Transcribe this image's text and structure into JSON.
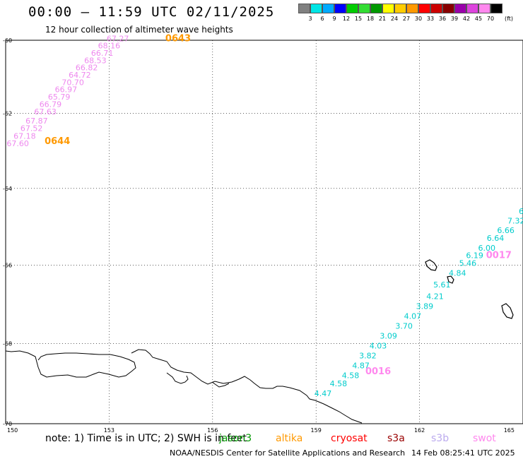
{
  "title": "00:00 – 11:59 UTC 02/11/2025",
  "subtitle": "12 hour collection of altimeter wave heights",
  "colorbar": {
    "colors": [
      "#808080",
      "#00e5e5",
      "#00aaff",
      "#0000ff",
      "#00cc00",
      "#33dd33",
      "#009900",
      "#ffff00",
      "#ffcc00",
      "#ff9900",
      "#ff0000",
      "#cc0000",
      "#880000",
      "#9900aa",
      "#dd44dd",
      "#ff88ee",
      "#000000"
    ],
    "labels": [
      "3",
      "6",
      "9",
      "12",
      "15",
      "18",
      "21",
      "24",
      "27",
      "30",
      "33",
      "36",
      "39",
      "42",
      "45",
      "70"
    ],
    "unit": "(ft)"
  },
  "map": {
    "lon_range": [
      150,
      165
    ],
    "lat_range": [
      -60,
      -70
    ],
    "lat_ticks": [
      {
        "lat": -60,
        "label": "-60"
      },
      {
        "lat": -62,
        "label": "-62"
      },
      {
        "lat": -64,
        "label": "-64"
      },
      {
        "lat": -66,
        "label": "-66"
      },
      {
        "lat": -68,
        "label": "-68"
      },
      {
        "lat": -70,
        "label": "-70"
      }
    ],
    "lon_ticks": [
      {
        "lon": 150,
        "label": "150"
      },
      {
        "lon": 153,
        "label": "153"
      },
      {
        "lon": 156,
        "label": "156"
      },
      {
        "lon": 159,
        "label": "159"
      },
      {
        "lon": 162,
        "label": "162"
      },
      {
        "lon": 165,
        "label": "165"
      }
    ],
    "passes": [
      {
        "satellite": "swot",
        "color": "#ee88ee",
        "labels": [
          {
            "text": "0643",
            "lon": 155.0,
            "lat": -59.95,
            "color": "#ff9900"
          },
          {
            "text": "0644",
            "lon": 151.5,
            "lat": -62.75,
            "color": "#ff9900"
          }
        ],
        "observations": [
          {
            "lon": 153.25,
            "lat": -59.95,
            "value": "67.27"
          },
          {
            "lon": 153.0,
            "lat": -60.15,
            "value": "68.16"
          },
          {
            "lon": 152.8,
            "lat": -60.35,
            "value": "66.71"
          },
          {
            "lon": 152.6,
            "lat": -60.55,
            "value": "68.53"
          },
          {
            "lon": 152.35,
            "lat": -60.75,
            "value": "66.82"
          },
          {
            "lon": 152.15,
            "lat": -60.95,
            "value": "64.72"
          },
          {
            "lon": 151.95,
            "lat": -61.15,
            "value": "70.70"
          },
          {
            "lon": 151.75,
            "lat": -61.35,
            "value": "66.97"
          },
          {
            "lon": 151.55,
            "lat": -61.55,
            "value": "65.79"
          },
          {
            "lon": 151.3,
            "lat": -61.75,
            "value": "66.79"
          },
          {
            "lon": 151.15,
            "lat": -61.95,
            "value": "67.63"
          },
          {
            "lon": 150.9,
            "lat": -62.2,
            "value": "67.87"
          },
          {
            "lon": 150.75,
            "lat": -62.4,
            "value": "67.52"
          },
          {
            "lon": 150.55,
            "lat": -62.6,
            "value": "67.18"
          },
          {
            "lon": 150.35,
            "lat": -62.8,
            "value": "67.60"
          }
        ]
      },
      {
        "satellite": "swot",
        "color": "#00cccc",
        "labels": [
          {
            "text": "0017",
            "lon": 164.3,
            "lat": -65.75,
            "color": "#ff88ee"
          },
          {
            "text": "0016",
            "lon": 160.8,
            "lat": -68.7,
            "color": "#ff88ee"
          }
        ],
        "observations": [
          {
            "lon": 164.95,
            "lat": -64.6,
            "value": "6"
          },
          {
            "lon": 164.8,
            "lat": -64.85,
            "value": "7.32"
          },
          {
            "lon": 164.5,
            "lat": -65.1,
            "value": "6.66"
          },
          {
            "lon": 164.2,
            "lat": -65.3,
            "value": "6.64"
          },
          {
            "lon": 163.95,
            "lat": -65.55,
            "value": "6.00"
          },
          {
            "lon": 163.6,
            "lat": -65.75,
            "value": "6.19"
          },
          {
            "lon": 163.4,
            "lat": -65.95,
            "value": "5.46"
          },
          {
            "lon": 163.1,
            "lat": -66.2,
            "value": "4.84"
          },
          {
            "lon": 162.65,
            "lat": -66.5,
            "value": "5.61"
          },
          {
            "lon": 162.45,
            "lat": -66.8,
            "value": "4.21"
          },
          {
            "lon": 162.15,
            "lat": -67.05,
            "value": "3.89"
          },
          {
            "lon": 161.8,
            "lat": -67.3,
            "value": "4.07"
          },
          {
            "lon": 161.55,
            "lat": -67.55,
            "value": "3.70"
          },
          {
            "lon": 161.1,
            "lat": -67.8,
            "value": "3.09"
          },
          {
            "lon": 160.8,
            "lat": -68.05,
            "value": "4.03"
          },
          {
            "lon": 160.5,
            "lat": -68.3,
            "value": "3.82"
          },
          {
            "lon": 160.3,
            "lat": -68.55,
            "value": "4.87"
          },
          {
            "lon": 160.0,
            "lat": -68.8,
            "value": "4.58"
          },
          {
            "lon": 159.65,
            "lat": -69.0,
            "value": "4.58"
          },
          {
            "lon": 159.2,
            "lat": -69.25,
            "value": "4.47"
          }
        ]
      }
    ]
  },
  "note": "note: 1) Time is in UTC; 2) SWH is in feet",
  "satellite_legend": [
    {
      "name": "jason3",
      "color": "#009900"
    },
    {
      "name": "altika",
      "color": "#ff9900"
    },
    {
      "name": "cryosat",
      "color": "#ff0000"
    },
    {
      "name": "s3a",
      "color": "#990000"
    },
    {
      "name": "s3b",
      "color": "#bbaaee"
    },
    {
      "name": "swot",
      "color": "#ff88ee"
    }
  ],
  "credit": "NOAA/NESDIS Center for Satellite Applications and Research",
  "timestamp": "14 Feb 08:25:41 UTC 2025"
}
